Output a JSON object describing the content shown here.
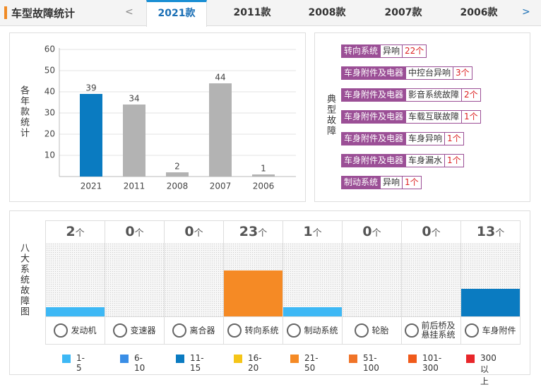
{
  "header": {
    "title": "车型故障统计",
    "prev": "<",
    "next": ">",
    "tabs": [
      "2021款",
      "2011款",
      "2008款",
      "2007款",
      "2006款"
    ],
    "active_tab": 0
  },
  "chart_data": {
    "type": "bar",
    "y_label": "各年款统计",
    "categories": [
      "2021",
      "2011",
      "2008",
      "2007",
      "2006"
    ],
    "values": [
      39,
      34,
      2,
      44,
      1
    ],
    "colors": [
      "#0a7bc1",
      "#b3b3b3",
      "#b3b3b3",
      "#b3b3b3",
      "#b3b3b3"
    ],
    "ylim": [
      0,
      60
    ],
    "yticks": [
      10,
      20,
      30,
      40,
      50,
      60
    ],
    "grid": true
  },
  "faults": {
    "label": "典型故障",
    "items": [
      {
        "system": "转向系统",
        "part": "异响",
        "count": "22个"
      },
      {
        "system": "车身附件及电器",
        "part": "中控台异响",
        "count": "3个"
      },
      {
        "system": "车身附件及电器",
        "part": "影音系统故障",
        "count": "2个"
      },
      {
        "system": "车身附件及电器",
        "part": "车载互联故障",
        "count": "1个"
      },
      {
        "system": "车身附件及电器",
        "part": "车身异响",
        "count": "1个"
      },
      {
        "system": "车身附件及电器",
        "part": "车身漏水",
        "count": "1个"
      },
      {
        "system": "制动系统",
        "part": "异响",
        "count": "1个"
      }
    ]
  },
  "systems": {
    "label": "八大系统故障图",
    "unit": "个",
    "items": [
      {
        "name": "发动机",
        "count": 2
      },
      {
        "name": "变速器",
        "count": 0
      },
      {
        "name": "离合器",
        "count": 0
      },
      {
        "name": "转向系统",
        "count": 23
      },
      {
        "name": "制动系统",
        "count": 1
      },
      {
        "name": "轮胎",
        "count": 0
      },
      {
        "name": "前后桥及悬挂系统",
        "count": 0
      },
      {
        "name": "车身附件",
        "count": 13
      }
    ],
    "legend": [
      {
        "label": "1-5",
        "color": "#3db8f5"
      },
      {
        "label": "6-10",
        "color": "#3a8ee6"
      },
      {
        "label": "11-15",
        "color": "#0a7bc1"
      },
      {
        "label": "16-20",
        "color": "#f5c518"
      },
      {
        "label": "21-50",
        "color": "#f58a25"
      },
      {
        "label": "51-100",
        "color": "#f07428"
      },
      {
        "label": "101-300",
        "color": "#f05a1a"
      },
      {
        "label": "300以上",
        "color": "#e8262a"
      }
    ]
  }
}
